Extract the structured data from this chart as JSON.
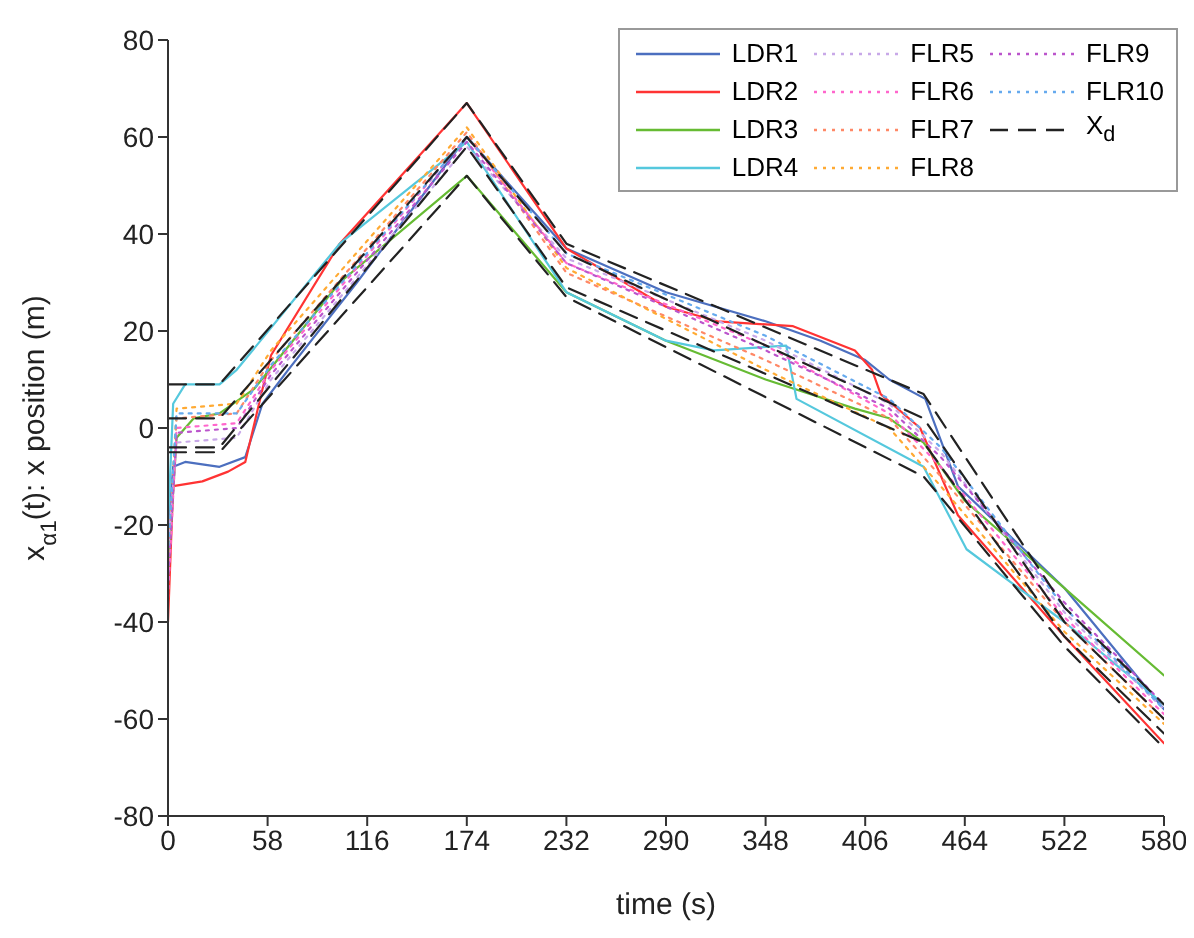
{
  "chart_data": {
    "type": "line",
    "xlabel": "time (s)",
    "ylabel": "x$_{α1}$(t): x position (m)",
    "xlim": [
      0,
      580
    ],
    "xticks": [
      0,
      58,
      116,
      174,
      232,
      290,
      348,
      406,
      464,
      522,
      580
    ],
    "ylim": [
      -80,
      80
    ],
    "yticks": [
      -80,
      -60,
      -40,
      -20,
      0,
      20,
      40,
      60,
      80
    ],
    "grid": false,
    "legend": "top right",
    "marker": "none",
    "series": [
      {
        "name": "LDR1",
        "color": "#4c6fbf",
        "line_style": "solid",
        "x": [
          0,
          3,
          10,
          30,
          45,
          55,
          70,
          110,
          174,
          232,
          290,
          348,
          380,
          406,
          420,
          441,
          460,
          522,
          580
        ],
        "values": [
          -22,
          -8,
          -7,
          -8,
          -6,
          5,
          12,
          30,
          60,
          37,
          28,
          22,
          18,
          14,
          10,
          6,
          -12,
          -33,
          -58
        ]
      },
      {
        "name": "LDR2",
        "color": "#ff3333",
        "line_style": "solid",
        "x": [
          0,
          3,
          20,
          35,
          45,
          55,
          60,
          100,
          174,
          232,
          290,
          320,
          364,
          400,
          410,
          415,
          438,
          460,
          522,
          580
        ],
        "values": [
          -40,
          -12,
          -11,
          -9,
          -7,
          8,
          15,
          38,
          67,
          37,
          25,
          22,
          21,
          16,
          12,
          7,
          0,
          -18,
          -43,
          -65
        ]
      },
      {
        "name": "LDR3",
        "color": "#66bb33",
        "line_style": "solid",
        "x": [
          0,
          5,
          15,
          30,
          50,
          100,
          174,
          232,
          290,
          348,
          400,
          420,
          440,
          464,
          522,
          580
        ],
        "values": [
          -30,
          -2,
          2,
          3,
          8,
          30,
          52,
          28,
          18,
          10,
          4,
          2,
          -3,
          -15,
          -33,
          -51
        ]
      },
      {
        "name": "LDR4",
        "color": "#55c8dd",
        "line_style": "solid",
        "x": [
          0,
          3,
          10,
          30,
          40,
          70,
          100,
          174,
          232,
          290,
          318,
          360,
          366,
          440,
          465,
          522,
          580
        ],
        "values": [
          -20,
          5,
          9,
          9,
          12,
          25,
          38,
          59,
          28,
          18,
          16,
          17,
          6,
          -8,
          -25,
          -40,
          -57
        ]
      },
      {
        "name": "FLR5",
        "color": "#c8a8e8",
        "line_style": "dotted",
        "x": [
          0,
          5,
          40,
          60,
          174,
          232,
          348,
          420,
          450,
          522,
          580
        ],
        "values": [
          -25,
          -3,
          -2,
          10,
          58,
          35,
          18,
          5,
          -5,
          -38,
          -58
        ]
      },
      {
        "name": "FLR6",
        "color": "#ff66cc",
        "line_style": "dotted",
        "x": [
          0,
          5,
          40,
          60,
          174,
          232,
          348,
          420,
          450,
          522,
          580
        ],
        "values": [
          -35,
          0,
          1,
          12,
          60,
          34,
          17,
          3,
          -8,
          -39,
          -59
        ]
      },
      {
        "name": "FLR7",
        "color": "#ff8866",
        "line_style": "dotted",
        "x": [
          0,
          5,
          40,
          60,
          174,
          232,
          348,
          420,
          450,
          522,
          580
        ],
        "values": [
          -30,
          2,
          3,
          14,
          61,
          32,
          14,
          2,
          -10,
          -40,
          -60
        ]
      },
      {
        "name": "FLR8",
        "color": "#ffaa33",
        "line_style": "dotted",
        "x": [
          0,
          5,
          40,
          60,
          174,
          232,
          348,
          420,
          450,
          522,
          580
        ],
        "values": [
          -28,
          4,
          5,
          16,
          62,
          33,
          12,
          0,
          -12,
          -42,
          -61
        ]
      },
      {
        "name": "FLR9",
        "color": "#bb55cc",
        "line_style": "dotted",
        "x": [
          0,
          5,
          40,
          60,
          174,
          232,
          348,
          420,
          450,
          522,
          580
        ],
        "values": [
          -32,
          -1,
          0,
          11,
          59,
          34,
          16,
          4,
          -6,
          -36,
          -57
        ]
      },
      {
        "name": "FLR10",
        "color": "#66aaee",
        "line_style": "dotted",
        "x": [
          0,
          5,
          40,
          60,
          174,
          232,
          348,
          420,
          450,
          522,
          580
        ],
        "values": [
          -26,
          3,
          3,
          13,
          60,
          36,
          19,
          6,
          -4,
          -37,
          -58
        ]
      },
      {
        "name": "X$_{d}$",
        "color": "#222222",
        "line_style": "dashed",
        "x": [
          0,
          30,
          174,
          232,
          440,
          522,
          580
        ],
        "values": [
          9,
          9,
          67,
          38,
          7,
          -37,
          -57
        ]
      },
      {
        "color": "#222222",
        "line_style": "dashed",
        "x": [
          0,
          30,
          174,
          232,
          440,
          522,
          580
        ],
        "values": [
          2,
          2,
          60,
          36,
          2,
          -40,
          -60
        ]
      },
      {
        "color": "#222222",
        "line_style": "dashed",
        "x": [
          0,
          30,
          174,
          232,
          440,
          522,
          580
        ],
        "values": [
          -4,
          -4,
          58,
          29,
          -3,
          -43,
          -63
        ]
      },
      {
        "color": "#222222",
        "line_style": "dashed",
        "x": [
          0,
          30,
          174,
          232,
          440,
          522,
          580
        ],
        "values": [
          -5,
          -5,
          52,
          27,
          -10,
          -45,
          -66
        ]
      }
    ]
  }
}
